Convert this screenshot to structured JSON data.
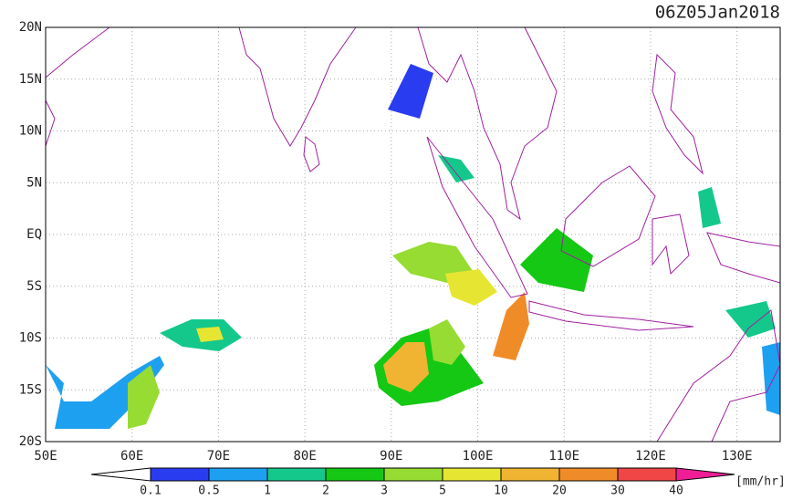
{
  "title": "06Z05Jan2018",
  "lat_labels": [
    "20N",
    "15N",
    "10N",
    "5N",
    "EQ",
    "5S",
    "10S",
    "15S",
    "20S"
  ],
  "lon_labels": [
    "50E",
    "60E",
    "70E",
    "80E",
    "90E",
    "100E",
    "110E",
    "120E",
    "130E"
  ],
  "colorbar": {
    "labels": [
      "0.1",
      "0.5",
      "1",
      "2",
      "3",
      "5",
      "10",
      "20",
      "30",
      "40"
    ],
    "colors": [
      "#2a3cf0",
      "#1ea0f0",
      "#14c88c",
      "#14c814",
      "#96dc32",
      "#e6e632",
      "#f0b432",
      "#f08c28",
      "#f04646",
      "#f01e96"
    ],
    "unit": "[mm/hr]"
  }
}
